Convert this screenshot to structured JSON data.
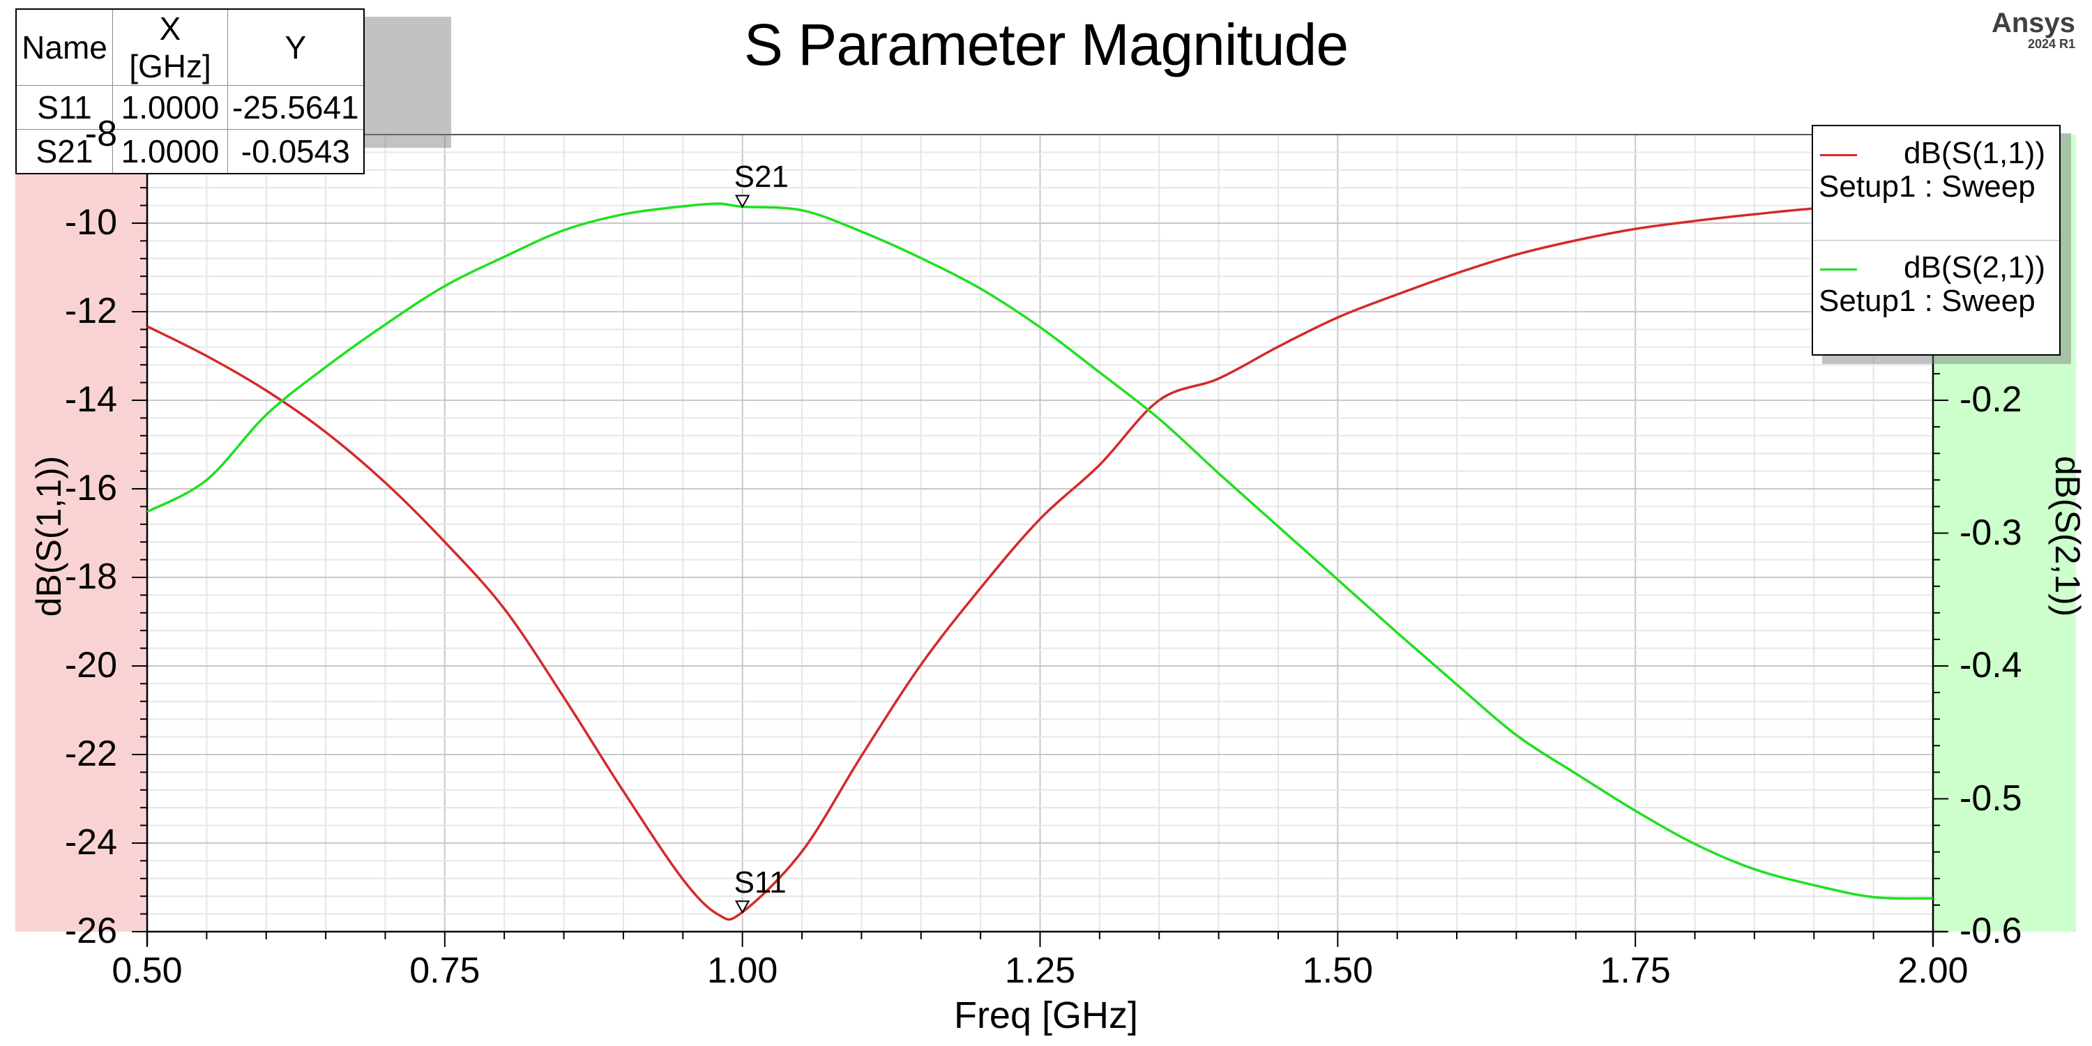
{
  "title": "S Parameter Magnitude",
  "logo": {
    "brand": "Ansys",
    "version": "2024 R1"
  },
  "marker_table": {
    "headers": [
      "Name",
      "X [GHz]",
      "Y"
    ],
    "rows": [
      {
        "name": "S11",
        "x": "1.0000",
        "y": "-25.5641"
      },
      {
        "name": "S21",
        "x": "1.0000",
        "y": "-0.0543"
      }
    ]
  },
  "legend": {
    "items": [
      {
        "name": "dB(S(1,1))",
        "context": "Setup1 : Sweep",
        "color": "#d42a2a"
      },
      {
        "name": "dB(S(2,1))",
        "context": "Setup1 : Sweep",
        "color": "#1fe01f"
      }
    ]
  },
  "axes": {
    "xlabel": "Freq [GHz]",
    "ylabel_left": "dB(S(1,1))",
    "ylabel_right": "dB(S(2,1))",
    "x_ticks": [
      "0.50",
      "0.75",
      "1.00",
      "1.25",
      "1.50",
      "1.75",
      "2.00"
    ],
    "y_left_ticks": [
      "-8",
      "-10",
      "-12",
      "-14",
      "-16",
      "-18",
      "-20",
      "-22",
      "-24",
      "-26"
    ],
    "y_right_ticks": [
      "-0.2",
      "-0.3",
      "-0.4",
      "-0.5",
      "-0.6"
    ]
  },
  "colors": {
    "left_axis_panel": "#f9d3d3",
    "right_axis_panel": "#ccffcc",
    "s11": "#d42a2a",
    "s21": "#1fe01f",
    "grid_major": "#c8c8c8",
    "grid_minor": "#e6e6e6"
  },
  "markers": [
    {
      "label": "S11",
      "x": 1.0,
      "y": -25.5641,
      "axis": "left"
    },
    {
      "label": "S21",
      "x": 1.0,
      "y": -0.0543,
      "axis": "right"
    }
  ],
  "chart_data": {
    "type": "line",
    "title": "S Parameter Magnitude",
    "xlabel": "Freq [GHz]",
    "ylabel": "dB(S(1,1))",
    "ylabel_secondary": "dB(S(2,1))",
    "xlim": [
      0.5,
      2.0
    ],
    "ylim": [
      -26,
      -8
    ],
    "ylim_secondary": [
      -0.6,
      0.0
    ],
    "grid": true,
    "legend_position": "top-right",
    "x": [
      0.5,
      0.55,
      0.6,
      0.65,
      0.7,
      0.75,
      0.8,
      0.85,
      0.9,
      0.95,
      0.98,
      1.0,
      1.05,
      1.1,
      1.15,
      1.2,
      1.25,
      1.3,
      1.35,
      1.4,
      1.45,
      1.5,
      1.55,
      1.6,
      1.65,
      1.7,
      1.75,
      1.8,
      1.85,
      1.9,
      1.95,
      2.0
    ],
    "series": [
      {
        "name": "dB(S(1,1))",
        "axis": "left",
        "color": "#d42a2a",
        "values": [
          -12.33,
          -13.0,
          -13.78,
          -14.72,
          -15.86,
          -17.2,
          -18.71,
          -20.71,
          -22.83,
          -24.82,
          -25.62,
          -25.56,
          -24.19,
          -22.03,
          -19.97,
          -18.24,
          -16.68,
          -15.46,
          -14.0,
          -13.51,
          -12.79,
          -12.13,
          -11.61,
          -11.13,
          -10.71,
          -10.39,
          -10.13,
          -9.95,
          -9.8,
          -9.67,
          -9.6,
          -9.55
        ]
      },
      {
        "name": "dB(S(2,1))",
        "axis": "right",
        "color": "#1fe01f",
        "values": [
          -0.284,
          -0.26,
          -0.211,
          -0.175,
          -0.143,
          -0.114,
          -0.092,
          -0.072,
          -0.06,
          -0.054,
          -0.052,
          -0.0543,
          -0.057,
          -0.073,
          -0.093,
          -0.116,
          -0.145,
          -0.179,
          -0.214,
          -0.255,
          -0.295,
          -0.335,
          -0.375,
          -0.414,
          -0.452,
          -0.481,
          -0.509,
          -0.534,
          -0.553,
          -0.565,
          -0.574,
          -0.575
        ]
      }
    ],
    "markers": [
      {
        "name": "S11",
        "x": 1.0,
        "y": -25.5641
      },
      {
        "name": "S21",
        "x": 1.0,
        "y": -0.0543
      }
    ]
  }
}
